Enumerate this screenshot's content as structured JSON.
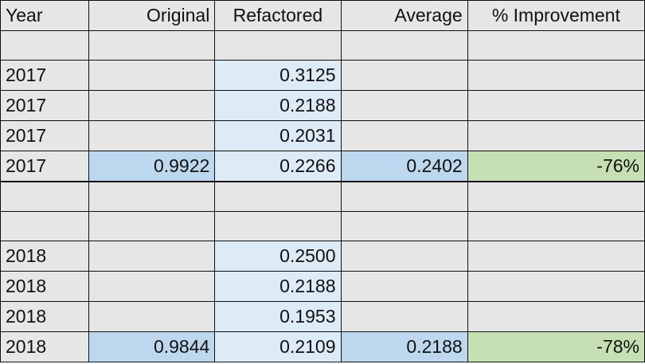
{
  "headers": [
    "Year",
    "Original",
    "Refactored",
    "Average",
    "% Improvement"
  ],
  "colors": {
    "blue": "#bdd7ee",
    "lightblue": "#ddebf7",
    "green": "#c6e0b4",
    "gray": "#e6e6e6"
  },
  "rows": [
    [
      "",
      "",
      "",
      "",
      ""
    ],
    [
      "2017",
      "",
      "0.3125",
      "",
      ""
    ],
    [
      "2017",
      "",
      "0.2188",
      "",
      ""
    ],
    [
      "2017",
      "",
      "0.2031",
      "",
      ""
    ],
    [
      "2017",
      "0.9922",
      "0.2266",
      "0.2402",
      "-76%"
    ],
    [
      "",
      "",
      "",
      "",
      ""
    ],
    [
      "",
      "",
      "",
      "",
      ""
    ],
    [
      "2018",
      "",
      "0.2500",
      "",
      ""
    ],
    [
      "2018",
      "",
      "0.2188",
      "",
      ""
    ],
    [
      "2018",
      "",
      "0.1953",
      "",
      ""
    ],
    [
      "2018",
      "0.9844",
      "0.2109",
      "0.2188",
      "-78%"
    ]
  ]
}
